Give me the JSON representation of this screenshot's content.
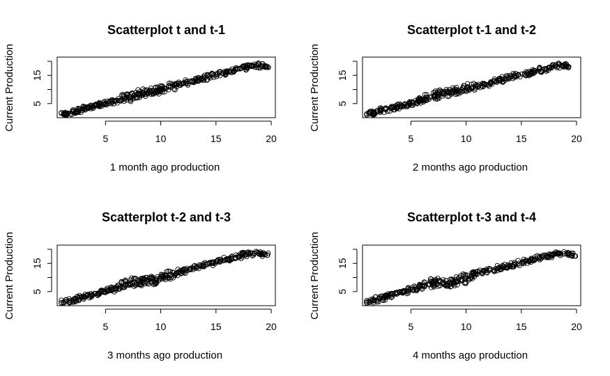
{
  "chart_data": [
    {
      "type": "scatter",
      "title": "Scatterplot t and t-1",
      "xlabel": "1 month ago production",
      "ylabel": "Current Production",
      "xlim": [
        1,
        20
      ],
      "ylim": [
        1,
        20
      ],
      "xticks": [
        5,
        10,
        15,
        20
      ],
      "yticks": [
        5,
        15
      ],
      "grid": false,
      "points": [
        [
          1.2,
          1.2
        ],
        [
          1.6,
          1.6
        ],
        [
          2.1,
          2.2
        ],
        [
          2.6,
          2.6
        ],
        [
          3.0,
          3.1
        ],
        [
          3.4,
          3.4
        ],
        [
          3.9,
          3.9
        ],
        [
          4.3,
          4.5
        ],
        [
          4.8,
          4.8
        ],
        [
          5.3,
          5.2
        ],
        [
          5.8,
          5.9
        ],
        [
          6.3,
          6.2
        ],
        [
          6.8,
          7.0
        ],
        [
          7.2,
          7.3
        ],
        [
          7.6,
          7.8
        ],
        [
          8.0,
          8.2
        ],
        [
          8.4,
          8.6
        ],
        [
          8.8,
          8.9
        ],
        [
          9.2,
          9.4
        ],
        [
          9.6,
          9.6
        ],
        [
          10.0,
          10.2
        ],
        [
          10.4,
          10.5
        ],
        [
          10.9,
          11.0
        ],
        [
          11.4,
          11.6
        ],
        [
          12.0,
          12.1
        ],
        [
          12.6,
          12.9
        ],
        [
          13.2,
          13.6
        ],
        [
          13.8,
          14.0
        ],
        [
          14.4,
          14.6
        ],
        [
          15.0,
          15.3
        ],
        [
          15.6,
          15.8
        ],
        [
          16.2,
          16.4
        ],
        [
          16.8,
          17.0
        ],
        [
          17.3,
          17.6
        ],
        [
          17.8,
          18.0
        ],
        [
          18.3,
          18.5
        ],
        [
          18.8,
          18.7
        ],
        [
          19.3,
          18.2
        ]
      ]
    },
    {
      "type": "scatter",
      "title": "Scatterplot t-1 and t-2",
      "xlabel": "2 months ago production",
      "ylabel": "Current Production",
      "xlim": [
        1,
        20
      ],
      "ylim": [
        1,
        20
      ],
      "xticks": [
        5,
        10,
        15,
        20
      ],
      "yticks": [
        5,
        15
      ],
      "grid": false,
      "points": [
        [
          1.2,
          1.4
        ],
        [
          1.7,
          1.8
        ],
        [
          2.2,
          2.4
        ],
        [
          2.7,
          2.9
        ],
        [
          3.2,
          3.3
        ],
        [
          3.7,
          3.9
        ],
        [
          4.2,
          4.3
        ],
        [
          4.7,
          4.6
        ],
        [
          5.2,
          5.4
        ],
        [
          5.7,
          5.9
        ],
        [
          6.2,
          6.6
        ],
        [
          6.7,
          7.2
        ],
        [
          7.1,
          7.8
        ],
        [
          7.5,
          8.2
        ],
        [
          7.9,
          8.6
        ],
        [
          8.3,
          8.9
        ],
        [
          8.7,
          9.1
        ],
        [
          9.1,
          9.4
        ],
        [
          9.6,
          9.8
        ],
        [
          10.1,
          10.4
        ],
        [
          10.6,
          10.9
        ],
        [
          11.1,
          11.3
        ],
        [
          11.7,
          11.8
        ],
        [
          12.3,
          12.5
        ],
        [
          12.9,
          13.2
        ],
        [
          13.5,
          13.9
        ],
        [
          14.1,
          14.6
        ],
        [
          14.7,
          15.1
        ],
        [
          15.3,
          15.6
        ],
        [
          15.9,
          16.0
        ],
        [
          16.5,
          16.6
        ],
        [
          17.1,
          17.2
        ],
        [
          17.6,
          17.8
        ],
        [
          18.1,
          18.3
        ],
        [
          18.6,
          18.6
        ],
        [
          19.1,
          18.3
        ]
      ]
    },
    {
      "type": "scatter",
      "title": "Scatterplot t-2 and t-3",
      "xlabel": "3 months ago production",
      "ylabel": "Current Production",
      "xlim": [
        1,
        20
      ],
      "ylim": [
        1,
        20
      ],
      "xticks": [
        5,
        10,
        15,
        20
      ],
      "yticks": [
        5,
        15
      ],
      "grid": false,
      "points": [
        [
          1.3,
          1.5
        ],
        [
          1.8,
          1.9
        ],
        [
          2.3,
          2.5
        ],
        [
          2.8,
          3.0
        ],
        [
          3.3,
          3.5
        ],
        [
          3.8,
          3.9
        ],
        [
          4.3,
          4.4
        ],
        [
          4.8,
          4.9
        ],
        [
          5.3,
          5.6
        ],
        [
          5.8,
          6.1
        ],
        [
          6.3,
          6.8
        ],
        [
          6.8,
          7.6
        ],
        [
          7.2,
          8.1
        ],
        [
          7.6,
          8.6
        ],
        [
          8.0,
          8.4
        ],
        [
          8.4,
          8.8
        ],
        [
          8.8,
          9.0
        ],
        [
          9.2,
          8.7
        ],
        [
          9.6,
          9.4
        ],
        [
          10.0,
          9.8
        ],
        [
          10.4,
          10.5
        ],
        [
          10.9,
          11.1
        ],
        [
          11.4,
          11.4
        ],
        [
          12.0,
          12.2
        ],
        [
          12.6,
          12.9
        ],
        [
          13.2,
          13.6
        ],
        [
          13.8,
          14.2
        ],
        [
          14.4,
          14.9
        ],
        [
          15.0,
          15.5
        ],
        [
          15.6,
          15.9
        ],
        [
          16.2,
          16.6
        ],
        [
          16.8,
          17.1
        ],
        [
          17.3,
          17.8
        ],
        [
          17.8,
          18.3
        ],
        [
          18.3,
          18.6
        ],
        [
          18.9,
          18.5
        ],
        [
          19.4,
          18.1
        ]
      ]
    },
    {
      "type": "scatter",
      "title": "Scatterplot t-3 and t-4",
      "xlabel": "4 months ago production",
      "ylabel": "Current Production",
      "xlim": [
        1,
        20
      ],
      "ylim": [
        1,
        20
      ],
      "xticks": [
        5,
        10,
        15,
        20
      ],
      "yticks": [
        5,
        15
      ],
      "grid": false,
      "points": [
        [
          1.2,
          1.6
        ],
        [
          1.7,
          2.0
        ],
        [
          2.2,
          2.6
        ],
        [
          2.7,
          3.1
        ],
        [
          3.2,
          3.6
        ],
        [
          3.7,
          4.1
        ],
        [
          4.2,
          4.7
        ],
        [
          4.7,
          5.2
        ],
        [
          5.2,
          5.8
        ],
        [
          5.7,
          6.4
        ],
        [
          6.2,
          7.0
        ],
        [
          6.7,
          7.6
        ],
        [
          7.1,
          8.3
        ],
        [
          7.5,
          8.8
        ],
        [
          7.9,
          8.2
        ],
        [
          8.3,
          7.9
        ],
        [
          8.7,
          8.1
        ],
        [
          9.1,
          8.6
        ],
        [
          9.5,
          9.2
        ],
        [
          10.0,
          10.0
        ],
        [
          10.5,
          10.7
        ],
        [
          11.0,
          11.3
        ],
        [
          11.5,
          11.9
        ],
        [
          12.1,
          12.5
        ],
        [
          12.7,
          13.1
        ],
        [
          13.3,
          13.7
        ],
        [
          13.9,
          14.3
        ],
        [
          14.5,
          14.9
        ],
        [
          15.1,
          15.5
        ],
        [
          15.7,
          16.0
        ],
        [
          16.3,
          16.6
        ],
        [
          16.9,
          17.1
        ],
        [
          17.4,
          17.6
        ],
        [
          17.9,
          18.1
        ],
        [
          18.4,
          18.5
        ],
        [
          18.9,
          18.4
        ],
        [
          19.4,
          18.2
        ]
      ]
    }
  ]
}
